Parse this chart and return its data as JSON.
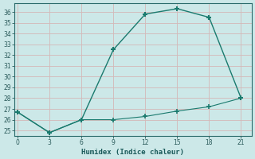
{
  "xlabel": "Humidex (Indice chaleur)",
  "bg_color": "#cce8e8",
  "grid_color": "#c0d8d8",
  "line_color": "#1a7a6e",
  "upper_x": [
    0,
    3,
    6,
    9,
    12,
    15,
    18,
    21
  ],
  "upper_y": [
    26.7,
    24.8,
    26.0,
    32.5,
    35.8,
    36.3,
    35.5,
    28.0
  ],
  "lower_x": [
    0,
    3,
    6,
    9,
    12,
    15,
    18,
    21
  ],
  "lower_y": [
    26.7,
    24.8,
    26.0,
    26.0,
    26.3,
    26.8,
    27.2,
    28.0
  ],
  "xlim": [
    -0.3,
    22.0
  ],
  "ylim": [
    24.5,
    36.8
  ],
  "yticks": [
    25,
    26,
    27,
    28,
    29,
    30,
    31,
    32,
    33,
    34,
    35,
    36
  ],
  "xticks": [
    0,
    3,
    6,
    9,
    12,
    15,
    18,
    21
  ]
}
